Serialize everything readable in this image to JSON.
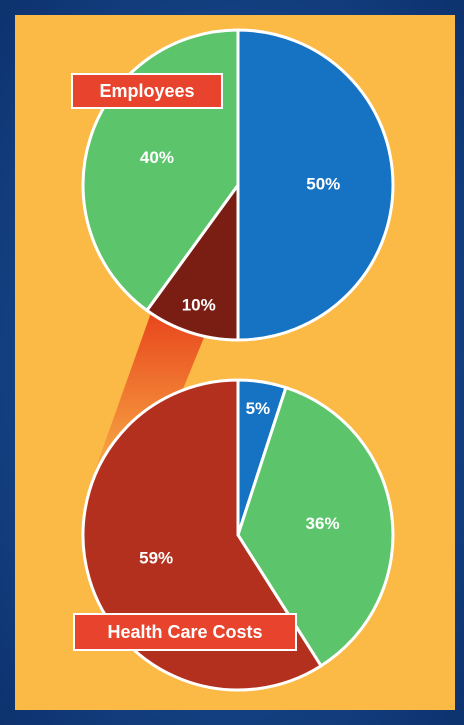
{
  "chart_data": [
    {
      "type": "pie",
      "title": "Employees",
      "values": [
        50,
        10,
        40
      ],
      "value_labels": [
        "50%",
        "10%",
        "40%"
      ],
      "colors": [
        "#1673c4",
        "#7a1e14",
        "#5cc46a"
      ]
    },
    {
      "type": "pie",
      "title": "Health Care Costs",
      "values": [
        5,
        36,
        59
      ],
      "value_labels": [
        "5%",
        "36%",
        "59%"
      ],
      "colors": [
        "#1673c4",
        "#5cc46a",
        "#b3301f"
      ]
    }
  ]
}
